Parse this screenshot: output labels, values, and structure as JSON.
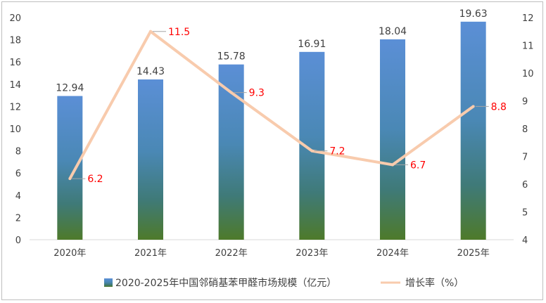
{
  "chart_data": {
    "type": "bar",
    "categories": [
      "2020年",
      "2021年",
      "2022年",
      "2023年",
      "2024年",
      "2025年"
    ],
    "series": [
      {
        "name": "2020-2025年中国邻硝基苯甲醛市场规模（亿元）",
        "type": "bar",
        "axis": "left",
        "values": [
          12.94,
          14.43,
          15.78,
          16.91,
          18.04,
          19.63
        ],
        "labels": [
          "12.94",
          "14.43",
          "15.78",
          "16.91",
          "18.04",
          "19.63"
        ]
      },
      {
        "name": "增长率（%）",
        "type": "line",
        "axis": "right",
        "values": [
          6.2,
          11.5,
          9.3,
          7.2,
          6.7,
          8.8
        ],
        "labels": [
          "6.2",
          "11.5",
          "9.3",
          "7.2",
          "6.7",
          "8.8"
        ]
      }
    ],
    "y_left": {
      "min": 0,
      "max": 20,
      "ticks": [
        "0",
        "2",
        "4",
        "6",
        "8",
        "10",
        "12",
        "14",
        "16",
        "18",
        "20"
      ]
    },
    "y_right": {
      "min": 4,
      "max": 12,
      "ticks": [
        "4",
        "5",
        "6",
        "7",
        "8",
        "9",
        "10",
        "11",
        "12"
      ]
    },
    "grid": false,
    "legend_position": "bottom",
    "colors": {
      "bar_top": "#5b8fd6",
      "bar_mid": "#3f7d8a",
      "bar_bottom": "#4e7a2a",
      "line": "#f8cbad",
      "line_label": "#ff0000",
      "text": "#404040"
    }
  }
}
